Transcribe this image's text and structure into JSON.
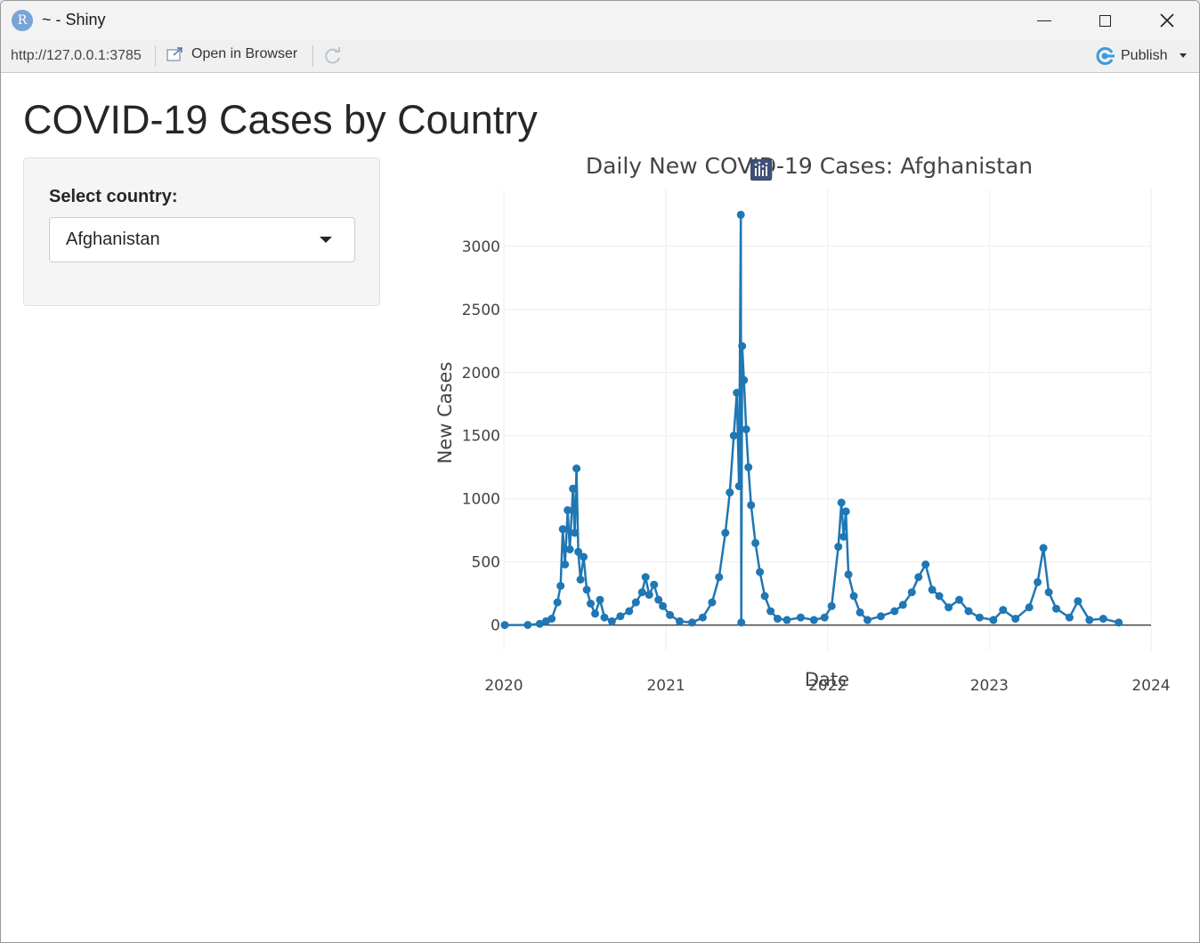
{
  "window": {
    "title": "~ - Shiny",
    "icon_letter": "R"
  },
  "toolbar": {
    "url": "http://127.0.0.1:3785",
    "open_in_browser": "Open in Browser",
    "publish": "Publish"
  },
  "app": {
    "title": "COVID-19 Cases by Country",
    "select_label": "Select country:",
    "selected_country": "Afghanistan"
  },
  "colors": {
    "series": "#1f77b4",
    "grid": "#eeeeee",
    "axis_text": "#444444"
  },
  "chart_data": {
    "type": "line",
    "title": "Daily New COVID-19 Cases: Afghanistan",
    "xlabel": "Date",
    "ylabel": "New Cases",
    "x_range": [
      "2020-01-01",
      "2024-01-01"
    ],
    "x_ticks": [
      "2020",
      "2021",
      "2022",
      "2023",
      "2024"
    ],
    "ylim": [
      -200,
      3450
    ],
    "y_ticks": [
      0,
      500,
      1000,
      1500,
      2000,
      2500,
      3000
    ],
    "grid": true,
    "legend": "none",
    "series": [
      {
        "markers": true,
        "points": [
          [
            "2020-01-03",
            0
          ],
          [
            "2020-02-24",
            1
          ],
          [
            "2020-03-22",
            10
          ],
          [
            "2020-04-05",
            30
          ],
          [
            "2020-04-18",
            50
          ],
          [
            "2020-05-01",
            180
          ],
          [
            "2020-05-08",
            310
          ],
          [
            "2020-05-13",
            760
          ],
          [
            "2020-05-18",
            480
          ],
          [
            "2020-05-24",
            910
          ],
          [
            "2020-05-29",
            600
          ],
          [
            "2020-06-05",
            1080
          ],
          [
            "2020-06-09",
            730
          ],
          [
            "2020-06-13",
            1240
          ],
          [
            "2020-06-17",
            580
          ],
          [
            "2020-06-22",
            360
          ],
          [
            "2020-06-29",
            540
          ],
          [
            "2020-07-06",
            280
          ],
          [
            "2020-07-15",
            170
          ],
          [
            "2020-07-25",
            90
          ],
          [
            "2020-08-05",
            200
          ],
          [
            "2020-08-15",
            60
          ],
          [
            "2020-09-01",
            30
          ],
          [
            "2020-09-20",
            70
          ],
          [
            "2020-10-10",
            110
          ],
          [
            "2020-10-25",
            180
          ],
          [
            "2020-11-08",
            260
          ],
          [
            "2020-11-16",
            380
          ],
          [
            "2020-11-24",
            240
          ],
          [
            "2020-12-05",
            320
          ],
          [
            "2020-12-15",
            200
          ],
          [
            "2020-12-25",
            150
          ],
          [
            "2021-01-10",
            80
          ],
          [
            "2021-02-01",
            30
          ],
          [
            "2021-03-01",
            20
          ],
          [
            "2021-03-25",
            60
          ],
          [
            "2021-04-15",
            180
          ],
          [
            "2021-05-01",
            380
          ],
          [
            "2021-05-15",
            730
          ],
          [
            "2021-05-25",
            1050
          ],
          [
            "2021-06-03",
            1500
          ],
          [
            "2021-06-10",
            1840
          ],
          [
            "2021-06-15",
            1100
          ],
          [
            "2021-06-19",
            3250
          ],
          [
            "2021-06-20",
            20
          ],
          [
            "2021-06-22",
            2210
          ],
          [
            "2021-06-26",
            1940
          ],
          [
            "2021-07-01",
            1550
          ],
          [
            "2021-07-06",
            1250
          ],
          [
            "2021-07-12",
            950
          ],
          [
            "2021-07-22",
            650
          ],
          [
            "2021-08-01",
            420
          ],
          [
            "2021-08-12",
            230
          ],
          [
            "2021-08-25",
            110
          ],
          [
            "2021-09-10",
            50
          ],
          [
            "2021-10-01",
            40
          ],
          [
            "2021-11-01",
            60
          ],
          [
            "2021-12-01",
            40
          ],
          [
            "2021-12-25",
            60
          ],
          [
            "2022-01-10",
            150
          ],
          [
            "2022-01-25",
            620
          ],
          [
            "2022-02-01",
            970
          ],
          [
            "2022-02-06",
            700
          ],
          [
            "2022-02-11",
            900
          ],
          [
            "2022-02-17",
            400
          ],
          [
            "2022-03-01",
            230
          ],
          [
            "2022-03-15",
            100
          ],
          [
            "2022-04-01",
            40
          ],
          [
            "2022-05-01",
            70
          ],
          [
            "2022-06-01",
            110
          ],
          [
            "2022-06-20",
            160
          ],
          [
            "2022-07-10",
            260
          ],
          [
            "2022-07-25",
            380
          ],
          [
            "2022-08-10",
            480
          ],
          [
            "2022-08-25",
            280
          ],
          [
            "2022-09-10",
            230
          ],
          [
            "2022-10-01",
            140
          ],
          [
            "2022-10-25",
            200
          ],
          [
            "2022-11-15",
            110
          ],
          [
            "2022-12-10",
            60
          ],
          [
            "2023-01-10",
            40
          ],
          [
            "2023-02-01",
            120
          ],
          [
            "2023-03-01",
            50
          ],
          [
            "2023-04-01",
            140
          ],
          [
            "2023-04-20",
            340
          ],
          [
            "2023-05-03",
            610
          ],
          [
            "2023-05-15",
            260
          ],
          [
            "2023-06-01",
            130
          ],
          [
            "2023-07-01",
            60
          ],
          [
            "2023-07-20",
            190
          ],
          [
            "2023-08-15",
            40
          ],
          [
            "2023-09-15",
            50
          ],
          [
            "2023-10-20",
            20
          ]
        ]
      }
    ]
  }
}
